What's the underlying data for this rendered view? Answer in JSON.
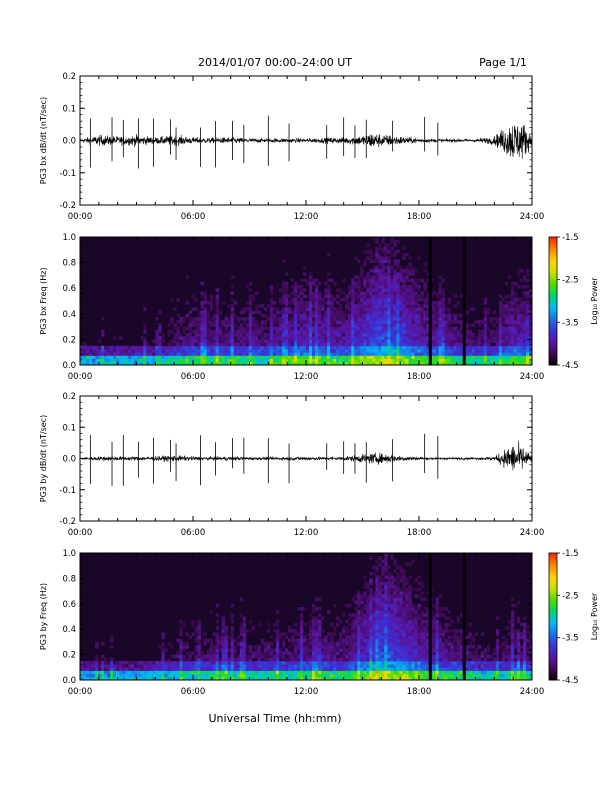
{
  "header": {
    "title": "2014/01/07  00:00–24:00 UT",
    "page_label": "Page 1/1"
  },
  "footer": {
    "xlabel": "Universal Time (hh:mm)"
  },
  "colors": {
    "background": "#ffffff",
    "trace": "#000000",
    "spectrogram_background": "#1a0628",
    "colormap": [
      "#000000",
      "#3b0a4f",
      "#5a14a0",
      "#3a32d8",
      "#1f6fe0",
      "#00b7ff",
      "#00d66b",
      "#4bdc00",
      "#c8e000",
      "#ffd400",
      "#ff8a00",
      "#ff2a00"
    ]
  },
  "chart_data": [
    {
      "type": "line",
      "panel": "bx-dbdt",
      "ylabel": "PG3 bx dB/dt (nT/sec)",
      "xlim": [
        "00:00",
        "24:00"
      ],
      "x_ticks": [
        "00:00",
        "06:00",
        "12:00",
        "18:00",
        "24:00"
      ],
      "ylim": [
        -0.2,
        0.2
      ],
      "y_ticks": [
        "-0.2",
        "-0.1",
        "0.0",
        "0.1",
        "0.2"
      ],
      "grid": false,
      "envelope": {
        "description": "dB/dt trace baseline near 0 with bursts",
        "x_hours": [
          0,
          1,
          2,
          3,
          4,
          5,
          6,
          7,
          8,
          9,
          10,
          11,
          12,
          13,
          14,
          15,
          15.5,
          16,
          17,
          18,
          19,
          20,
          21,
          22,
          22.5,
          23,
          23.5,
          24
        ],
        "amplitude": [
          0.015,
          0.05,
          0.04,
          0.05,
          0.03,
          0.05,
          0.03,
          0.025,
          0.03,
          0.02,
          0.02,
          0.02,
          0.02,
          0.025,
          0.03,
          0.05,
          0.08,
          0.06,
          0.04,
          0.02,
          0.015,
          0.015,
          0.015,
          0.04,
          0.12,
          0.2,
          0.18,
          0.05
        ]
      }
    },
    {
      "type": "heatmap",
      "panel": "bx-spectrogram",
      "ylabel": "PG3 bx Freq (Hz)",
      "xlim": [
        "00:00",
        "24:00"
      ],
      "x_ticks": [
        "00:00",
        "06:00",
        "12:00",
        "18:00",
        "24:00"
      ],
      "ylim": [
        0.0,
        1.0
      ],
      "y_ticks": [
        "0.0",
        "0.2",
        "0.4",
        "0.6",
        "0.8",
        "1.0"
      ],
      "colorbar": {
        "label": "Log₁₀ Power",
        "range": [
          -4.5,
          -1.5
        ],
        "ticks": [
          "-1.5",
          "-2.5",
          "-3.5",
          "-4.5"
        ]
      },
      "hour_profile": {
        "x_hours": [
          0,
          2,
          4,
          5,
          6,
          8,
          10,
          11,
          12,
          14,
          15,
          16,
          17,
          18,
          19,
          20,
          21,
          22,
          23,
          24
        ],
        "level": [
          -4.3,
          -4.2,
          -4.2,
          -4.0,
          -3.9,
          -3.9,
          -3.9,
          -3.8,
          -3.7,
          -3.8,
          -3.6,
          -3.4,
          -3.5,
          -3.7,
          -3.8,
          -3.9,
          -4.0,
          -4.0,
          -3.7,
          -3.8
        ]
      },
      "dark_columns_hours": [
        18.6,
        20.4
      ]
    },
    {
      "type": "line",
      "panel": "by-dbdt",
      "ylabel": "PG3 by dB/dt (nT/sec)",
      "xlim": [
        "00:00",
        "24:00"
      ],
      "x_ticks": [
        "00:00",
        "06:00",
        "12:00",
        "18:00",
        "24:00"
      ],
      "ylim": [
        -0.2,
        0.2
      ],
      "y_ticks": [
        "-0.2",
        "-0.1",
        "0.0",
        "0.1",
        "0.2"
      ],
      "grid": false,
      "envelope": {
        "description": "dB/dt trace baseline near 0 with bursts",
        "x_hours": [
          0,
          1,
          2,
          3,
          4,
          5,
          6,
          7,
          8,
          9,
          10,
          11,
          12,
          13,
          14,
          15,
          15.5,
          16,
          17,
          18,
          19,
          20,
          21,
          22,
          22.5,
          23,
          23.5,
          24
        ],
        "amplitude": [
          0.01,
          0.02,
          0.02,
          0.02,
          0.02,
          0.03,
          0.02,
          0.015,
          0.02,
          0.015,
          0.015,
          0.015,
          0.02,
          0.015,
          0.02,
          0.04,
          0.05,
          0.05,
          0.03,
          0.015,
          0.01,
          0.01,
          0.01,
          0.02,
          0.08,
          0.15,
          0.12,
          0.03
        ]
      }
    },
    {
      "type": "heatmap",
      "panel": "by-spectrogram",
      "ylabel": "PG3 by Freq (Hz)",
      "xlim": [
        "00:00",
        "24:00"
      ],
      "x_ticks": [
        "00:00",
        "06:00",
        "12:00",
        "18:00",
        "24:00"
      ],
      "ylim": [
        0.0,
        1.0
      ],
      "y_ticks": [
        "0.0",
        "0.2",
        "0.4",
        "0.6",
        "0.8",
        "1.0"
      ],
      "colorbar": {
        "label": "Log₁₀ Power",
        "range": [
          -4.5,
          -1.5
        ],
        "ticks": [
          "-1.5",
          "-2.5",
          "-3.5",
          "-4.5"
        ]
      },
      "hour_profile": {
        "x_hours": [
          0,
          2,
          4,
          5,
          6,
          8,
          10,
          11,
          12,
          14,
          15,
          16,
          17,
          18,
          19,
          20,
          21,
          22,
          23,
          24
        ],
        "level": [
          -4.3,
          -4.3,
          -4.2,
          -4.1,
          -4.0,
          -4.0,
          -4.0,
          -4.0,
          -3.9,
          -3.9,
          -3.7,
          -3.4,
          -3.5,
          -3.7,
          -3.8,
          -3.9,
          -4.0,
          -4.1,
          -3.9,
          -4.0
        ]
      },
      "dark_columns_hours": [
        18.6,
        20.4
      ]
    }
  ]
}
